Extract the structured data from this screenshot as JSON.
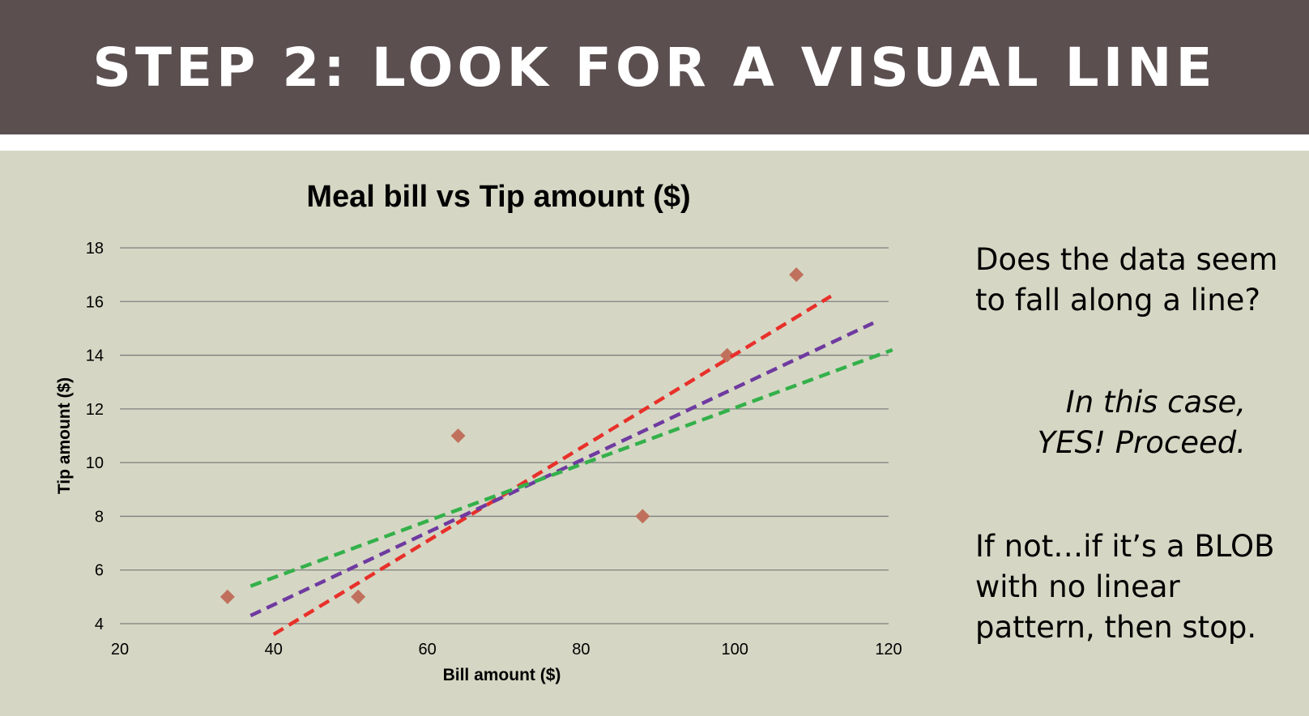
{
  "slide": {
    "title": "STEP 2: LOOK FOR A VISUAL LINE",
    "question_lines": [
      "Does the data seem",
      "to fall along a line?"
    ],
    "answer_lines": [
      "In this case,",
      "YES! Proceed."
    ],
    "note_lines": [
      "If not…if it’s a BLOB",
      "with no linear",
      "pattern, then stop."
    ]
  },
  "colors": {
    "header_bg": "#5b4f50",
    "slide_bg": "#d5d7c4",
    "marker": "#c0715d",
    "red_line": "#e8302a",
    "purple_line": "#6f3aa0",
    "green_line": "#34b04a",
    "grid": "#7f7f7f"
  },
  "chart_data": {
    "type": "scatter",
    "title": "Meal bill vs Tip amount ($)",
    "xlabel": "Bill amount ($)",
    "ylabel": "Tip amount ($)",
    "xlim": [
      20,
      120
    ],
    "ylim": [
      4,
      18
    ],
    "xticks": [
      "20",
      "40",
      "60",
      "80",
      "100",
      "120"
    ],
    "yticks": [
      "4",
      "6",
      "8",
      "10",
      "12",
      "14",
      "16",
      "18"
    ],
    "grid": "horizontal",
    "legend": "none",
    "points": [
      {
        "x": 34,
        "y": 5
      },
      {
        "x": 51,
        "y": 5
      },
      {
        "x": 64,
        "y": 11
      },
      {
        "x": 88,
        "y": 8
      },
      {
        "x": 99,
        "y": 14
      },
      {
        "x": 108,
        "y": 17
      }
    ],
    "trend_lines": [
      {
        "color": "#e8302a",
        "start": [
          40,
          3.6
        ],
        "end": [
          112.5,
          16.2
        ]
      },
      {
        "color": "#6f3aa0",
        "start": [
          37,
          4.3
        ],
        "end": [
          118,
          15.2
        ]
      },
      {
        "color": "#34b04a",
        "start": [
          37,
          5.4
        ],
        "end": [
          120.5,
          14.2
        ]
      }
    ]
  }
}
